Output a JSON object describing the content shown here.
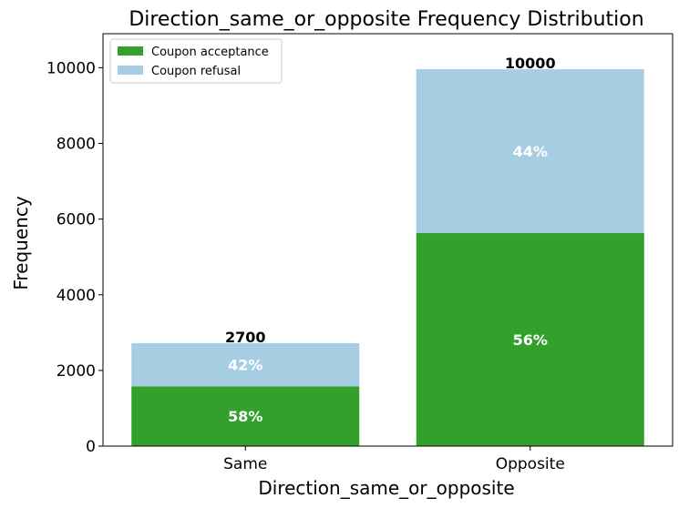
{
  "chart_data": {
    "type": "bar",
    "stacked": true,
    "title": "Direction_same_or_opposite Frequency Distribution",
    "xlabel": "Direction_same_or_opposite",
    "ylabel": "Frequency",
    "categories": [
      "Same",
      "Opposite"
    ],
    "series": [
      {
        "name": "Coupon acceptance",
        "color": "#33a02c",
        "values": [
          1580,
          5630
        ],
        "labels": [
          "58%",
          "56%"
        ]
      },
      {
        "name": "Coupon refusal",
        "color": "#a6cee3",
        "values": [
          1140,
          4330
        ],
        "labels": [
          "42%",
          "44%"
        ]
      }
    ],
    "totals": [
      "2700",
      "10000"
    ],
    "ylim": [
      0,
      10900
    ],
    "yticks": [
      0,
      2000,
      4000,
      6000,
      8000,
      10000
    ],
    "legend_position": "top-left",
    "grid": false
  }
}
